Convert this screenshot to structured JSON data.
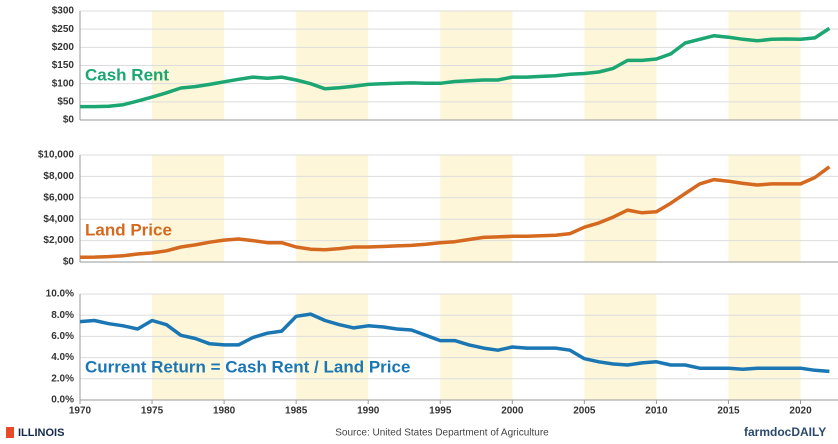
{
  "chart_data": [
    {
      "type": "line",
      "x": [
        1970,
        1971,
        1972,
        1973,
        1974,
        1975,
        1976,
        1977,
        1978,
        1979,
        1980,
        1981,
        1982,
        1983,
        1984,
        1985,
        1986,
        1987,
        1988,
        1989,
        1990,
        1991,
        1992,
        1993,
        1994,
        1995,
        1996,
        1997,
        1998,
        1999,
        2000,
        2001,
        2002,
        2003,
        2004,
        2005,
        2006,
        2007,
        2008,
        2009,
        2010,
        2011,
        2012,
        2013,
        2014,
        2015,
        2016,
        2017,
        2018,
        2019,
        2020,
        2021,
        2022
      ],
      "series": [
        {
          "name": "Cash Rent",
          "color": "#1ba672",
          "values": [
            37,
            37,
            38,
            42,
            52,
            63,
            75,
            88,
            92,
            98,
            105,
            112,
            118,
            115,
            118,
            110,
            100,
            86,
            89,
            93,
            98,
            100,
            101,
            102,
            101,
            101,
            106,
            108,
            110,
            110,
            118,
            118,
            120,
            122,
            126,
            128,
            132,
            142,
            164,
            164,
            168,
            182,
            212,
            222,
            232,
            228,
            222,
            218,
            222,
            223,
            222,
            226,
            252
          ]
        }
      ],
      "xlim": [
        1970,
        2022.6
      ],
      "ylim": [
        0,
        300
      ],
      "yticks": [
        {
          "value": 0,
          "label": "$0"
        },
        {
          "value": 50,
          "label": "$50"
        },
        {
          "value": 100,
          "label": "$100"
        },
        {
          "value": 150,
          "label": "$150"
        },
        {
          "value": 200,
          "label": "$200"
        },
        {
          "value": 250,
          "label": "$250"
        },
        {
          "value": 300,
          "label": "$300"
        }
      ],
      "grid": true
    },
    {
      "type": "line",
      "x": [
        1970,
        1971,
        1972,
        1973,
        1974,
        1975,
        1976,
        1977,
        1978,
        1979,
        1980,
        1981,
        1982,
        1983,
        1984,
        1985,
        1986,
        1987,
        1988,
        1989,
        1990,
        1991,
        1992,
        1993,
        1994,
        1995,
        1996,
        1997,
        1998,
        1999,
        2000,
        2001,
        2002,
        2003,
        2004,
        2005,
        2006,
        2007,
        2008,
        2009,
        2010,
        2011,
        2012,
        2013,
        2014,
        2015,
        2016,
        2017,
        2018,
        2019,
        2020,
        2021,
        2022
      ],
      "series": [
        {
          "name": "Land Price",
          "color": "#d5691f",
          "values": [
            450,
            460,
            500,
            580,
            750,
            850,
            1050,
            1400,
            1600,
            1850,
            2050,
            2150,
            2000,
            1800,
            1800,
            1400,
            1200,
            1150,
            1250,
            1400,
            1400,
            1450,
            1500,
            1550,
            1650,
            1800,
            1900,
            2100,
            2300,
            2350,
            2400,
            2400,
            2450,
            2500,
            2650,
            3250,
            3650,
            4200,
            4850,
            4600,
            4700,
            5500,
            6400,
            7300,
            7700,
            7550,
            7350,
            7200,
            7300,
            7300,
            7300,
            7900,
            8900
          ]
        }
      ],
      "xlim": [
        1970,
        2022.6
      ],
      "ylim": [
        0,
        10000
      ],
      "yticks": [
        {
          "value": 0,
          "label": "$0"
        },
        {
          "value": 2000,
          "label": "$2,000"
        },
        {
          "value": 4000,
          "label": "$4,000"
        },
        {
          "value": 6000,
          "label": "$6,000"
        },
        {
          "value": 8000,
          "label": "$8,000"
        },
        {
          "value": 10000,
          "label": "$10,000"
        }
      ],
      "grid": true
    },
    {
      "type": "line",
      "x": [
        1970,
        1971,
        1972,
        1973,
        1974,
        1975,
        1976,
        1977,
        1978,
        1979,
        1980,
        1981,
        1982,
        1983,
        1984,
        1985,
        1986,
        1987,
        1988,
        1989,
        1990,
        1991,
        1992,
        1993,
        1994,
        1995,
        1996,
        1997,
        1998,
        1999,
        2000,
        2001,
        2002,
        2003,
        2004,
        2005,
        2006,
        2007,
        2008,
        2009,
        2010,
        2011,
        2012,
        2013,
        2014,
        2015,
        2016,
        2017,
        2018,
        2019,
        2020,
        2021,
        2022
      ],
      "series": [
        {
          "name": "Current Return = Cash Rent / Land Price",
          "color": "#1b77b3",
          "values": [
            7.4,
            7.5,
            7.2,
            7.0,
            6.7,
            7.5,
            7.1,
            6.1,
            5.8,
            5.3,
            5.2,
            5.2,
            5.9,
            6.3,
            6.5,
            7.9,
            8.1,
            7.5,
            7.1,
            6.8,
            7.0,
            6.9,
            6.7,
            6.6,
            6.1,
            5.6,
            5.6,
            5.2,
            4.9,
            4.7,
            5.0,
            4.9,
            4.9,
            4.9,
            4.7,
            3.9,
            3.6,
            3.4,
            3.3,
            3.5,
            3.6,
            3.3,
            3.3,
            3.0,
            3.0,
            3.0,
            2.9,
            3.0,
            3.0,
            3.0,
            3.0,
            2.8,
            2.7
          ]
        }
      ],
      "xlim": [
        1970,
        2022.6
      ],
      "ylim": [
        0,
        10
      ],
      "yticks": [
        {
          "value": 0,
          "label": "0.0%"
        },
        {
          "value": 2,
          "label": "2.0%"
        },
        {
          "value": 4,
          "label": "4.0%"
        },
        {
          "value": 6,
          "label": "6.0%"
        },
        {
          "value": 8,
          "label": "8.0%"
        },
        {
          "value": 10,
          "label": "10.0%"
        }
      ],
      "xticks": [
        1970,
        1975,
        1980,
        1985,
        1990,
        1995,
        2000,
        2005,
        2010,
        2015,
        2020
      ],
      "grid": true
    }
  ],
  "footer": {
    "logo_left": "ILLINOIS",
    "source": "Source: United States Department of Agriculture",
    "logo_right": "farmdocDAILY"
  }
}
